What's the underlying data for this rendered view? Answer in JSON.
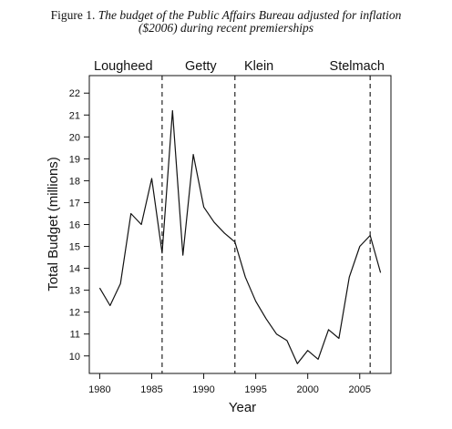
{
  "caption": {
    "label": "Figure 1.",
    "title_line1": "The budget of the Public Affairs Bureau adjusted for inflation",
    "title_line2": "($2006) during recent premierships"
  },
  "chart_data": {
    "type": "line",
    "xlabel": "Year",
    "ylabel": "Total Budget (millions)",
    "xlim": [
      1979,
      2008
    ],
    "ylim": [
      9.2,
      22.8
    ],
    "x_ticks": [
      1980,
      1985,
      1990,
      1995,
      2000,
      2005
    ],
    "y_ticks": [
      10,
      11,
      12,
      13,
      14,
      15,
      16,
      17,
      18,
      19,
      20,
      21,
      22
    ],
    "grid": false,
    "series": [
      {
        "x": [
          1980,
          1981,
          1982,
          1983,
          1984,
          1985,
          1986,
          1987,
          1988,
          1989,
          1990,
          1991,
          1992,
          1993,
          1994,
          1995,
          1996,
          1997,
          1998,
          1999,
          2000,
          2001,
          2002,
          2003,
          2004,
          2005,
          2006,
          2007
        ],
        "y": [
          13.1,
          12.3,
          13.3,
          16.5,
          16.0,
          18.1,
          14.7,
          21.2,
          14.6,
          19.2,
          16.8,
          16.1,
          15.6,
          15.2,
          13.6,
          12.5,
          11.7,
          11.0,
          10.7,
          9.65,
          10.25,
          9.85,
          11.2,
          10.8,
          13.6,
          15.0,
          15.5,
          13.8
        ]
      }
    ],
    "premierships": [
      {
        "name": "Lougheed",
        "start": 1979,
        "end": 1986
      },
      {
        "name": "Getty",
        "start": 1986,
        "end": 1993
      },
      {
        "name": "Klein",
        "start": 1993,
        "end": 2006
      },
      {
        "name": "Stelmach",
        "start": 2006,
        "end": 2008
      }
    ],
    "dividers": [
      1986,
      1993,
      2006
    ]
  }
}
